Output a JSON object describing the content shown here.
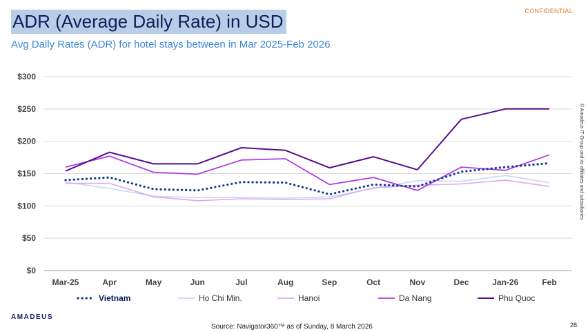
{
  "header": {
    "title": "ADR (Average Daily Rate) in USD",
    "subtitle": "Avg Daily Rates (ADR) for hotel stays between in Mar 2025-Feb 2026",
    "confidential": "CONFIDENTIAL"
  },
  "footer": {
    "logo": "AMADEUS",
    "source": "Source: Navigator360™ as of Sunday, 8 March 2026",
    "page_number": "28",
    "copyright": "© Amadeus IT Group and its affiliates and subsidiaries"
  },
  "chart_data": {
    "type": "line",
    "title": "",
    "xlabel": "",
    "ylabel": "",
    "categories": [
      "Mar-25",
      "Apr",
      "May",
      "Jun",
      "Jul",
      "Aug",
      "Sep",
      "Oct",
      "Nov",
      "Dec",
      "Jan-26",
      "Feb"
    ],
    "ylim": [
      0,
      300
    ],
    "yticks": [
      0,
      50,
      100,
      150,
      200,
      250,
      300
    ],
    "ytick_labels": [
      "$0",
      "$50",
      "$100",
      "$150",
      "$200",
      "$250",
      "$300"
    ],
    "grid": true,
    "legend_position": "bottom",
    "series": [
      {
        "name": "Vietnam",
        "style": "dotted",
        "color": "#0b3a8c",
        "values": [
          140,
          144,
          126,
          124,
          137,
          136,
          118,
          133,
          130,
          153,
          160,
          166
        ]
      },
      {
        "name": "Ho Chi Min.",
        "style": "solid",
        "color": "#c9d6f2",
        "values": [
          137,
          127,
          115,
          113,
          113,
          112,
          114,
          127,
          139,
          138,
          147,
          136
        ]
      },
      {
        "name": "Hanoi",
        "style": "solid",
        "color": "#dba8f2",
        "values": [
          135,
          135,
          114,
          108,
          111,
          110,
          111,
          128,
          132,
          134,
          140,
          130
        ]
      },
      {
        "name": "Da Nang",
        "style": "solid",
        "color": "#b23be6",
        "values": [
          160,
          177,
          152,
          149,
          171,
          173,
          133,
          144,
          124,
          160,
          155,
          179
        ]
      },
      {
        "name": "Phu Quoc",
        "style": "solid",
        "color": "#560e8a",
        "values": [
          154,
          183,
          165,
          165,
          190,
          186,
          159,
          176,
          156,
          234,
          250,
          250
        ]
      }
    ]
  }
}
